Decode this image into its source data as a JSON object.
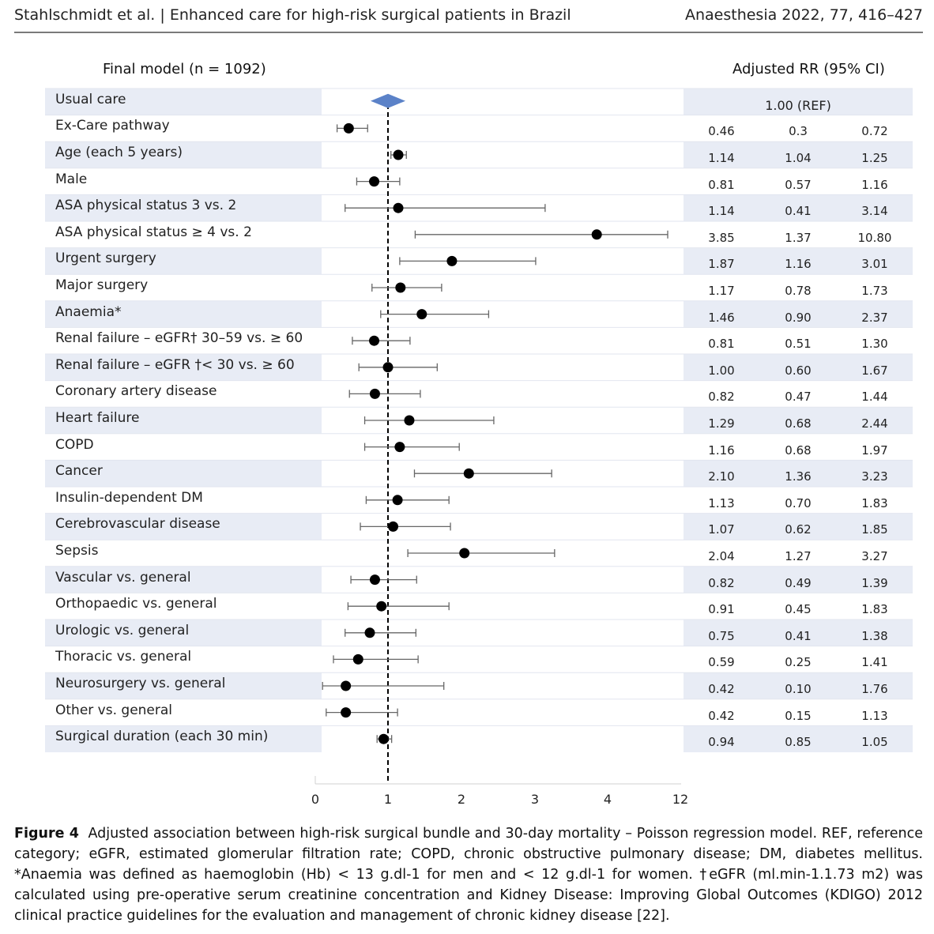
{
  "header": {
    "left": "Stahlschmidt et al.  |  Enhanced care for high-risk surgical patients in Brazil",
    "right": "Anaesthesia 2022, 77, 416–427"
  },
  "left_title": "Final model (n = 1092)",
  "right_title": "Adjusted RR (95% CI)",
  "reference_text": "1.00 (REF)",
  "colors": {
    "band": "#e8ecf5",
    "diamond": "#5b82c8",
    "marker": "#000000",
    "ci": "#666666"
  },
  "chart_data": {
    "type": "forest",
    "reference_line": 1,
    "x_ticks": [
      "0",
      "1",
      "2",
      "3",
      "4",
      "12"
    ],
    "x_tick_values": [
      0,
      1,
      2,
      3,
      4,
      12
    ],
    "rows": [
      {
        "label": "Usual care",
        "rr": "1.00",
        "lo": "",
        "hi": "",
        "reference": true
      },
      {
        "label": "Ex-Care pathway",
        "rr": "0.46",
        "lo": "0.3",
        "hi": "0.72"
      },
      {
        "label": "Age (each 5 years)",
        "rr": "1.14",
        "lo": "1.04",
        "hi": "1.25"
      },
      {
        "label": "Male",
        "rr": "0.81",
        "lo": "0.57",
        "hi": "1.16"
      },
      {
        "label": "ASA physical status 3 vs. 2",
        "rr": "1.14",
        "lo": "0.41",
        "hi": "3.14"
      },
      {
        "label": "ASA physical status ≥ 4 vs. 2",
        "rr": "3.85",
        "lo": "1.37",
        "hi": "10.80"
      },
      {
        "label": "Urgent surgery",
        "rr": "1.87",
        "lo": "1.16",
        "hi": "3.01"
      },
      {
        "label": "Major surgery",
        "rr": "1.17",
        "lo": "0.78",
        "hi": "1.73"
      },
      {
        "label": "Anaemia*",
        "rr": "1.46",
        "lo": "0.90",
        "hi": "2.37"
      },
      {
        "label": "Renal failure – eGFR† 30–59  vs. ≥ 60",
        "rr": "0.81",
        "lo": "0.51",
        "hi": "1.30"
      },
      {
        "label": "Renal failure – eGFR †< 30 vs. ≥ 60",
        "rr": "1.00",
        "lo": "0.60",
        "hi": "1.67"
      },
      {
        "label": "Coronary artery disease",
        "rr": "0.82",
        "lo": "0.47",
        "hi": "1.44"
      },
      {
        "label": "Heart failure",
        "rr": "1.29",
        "lo": "0.68",
        "hi": "2.44"
      },
      {
        "label": "COPD",
        "rr": "1.16",
        "lo": "0.68",
        "hi": "1.97"
      },
      {
        "label": "Cancer",
        "rr": "2.10",
        "lo": "1.36",
        "hi": "3.23"
      },
      {
        "label": "Insulin-dependent DM",
        "rr": "1.13",
        "lo": "0.70",
        "hi": "1.83"
      },
      {
        "label": "Cerebrovascular disease",
        "rr": "1.07",
        "lo": "0.62",
        "hi": "1.85"
      },
      {
        "label": "Sepsis",
        "rr": "2.04",
        "lo": "1.27",
        "hi": "3.27"
      },
      {
        "label": "Vascular vs. general",
        "rr": "0.82",
        "lo": "0.49",
        "hi": "1.39"
      },
      {
        "label": "Orthopaedic vs. general",
        "rr": "0.91",
        "lo": "0.45",
        "hi": "1.83"
      },
      {
        "label": "Urologic vs. general",
        "rr": "0.75",
        "lo": "0.41",
        "hi": "1.38"
      },
      {
        "label": "Thoracic vs. general",
        "rr": "0.59",
        "lo": "0.25",
        "hi": "1.41"
      },
      {
        "label": "Neurosurgery vs. general",
        "rr": "0.42",
        "lo": "0.10",
        "hi": "1.76"
      },
      {
        "label": "Other vs. general",
        "rr": "0.42",
        "lo": "0.15",
        "hi": "1.13"
      },
      {
        "label": "Surgical duration (each 30 min)",
        "rr": "0.94",
        "lo": "0.85",
        "hi": "1.05"
      }
    ]
  },
  "caption": {
    "label": "Figure 4",
    "text": "Adjusted association between high-risk surgical bundle and 30-day mortality – Poisson regression model. REF, reference category; eGFR, estimated glomerular filtration rate; COPD, chronic obstructive pulmonary disease; DM, diabetes mellitus. *Anaemia was defined as haemoglobin (Hb) < 13 g.dl-1 for men and < 12 g.dl-1 for women. †eGFR (ml.min-1.1.73 m2) was calculated using pre-operative serum creatinine concentration and Kidney Disease: Improving Global Outcomes (KDIGO) 2012 clinical practice guidelines for the evaluation and management of chronic kidney disease [22]."
  }
}
